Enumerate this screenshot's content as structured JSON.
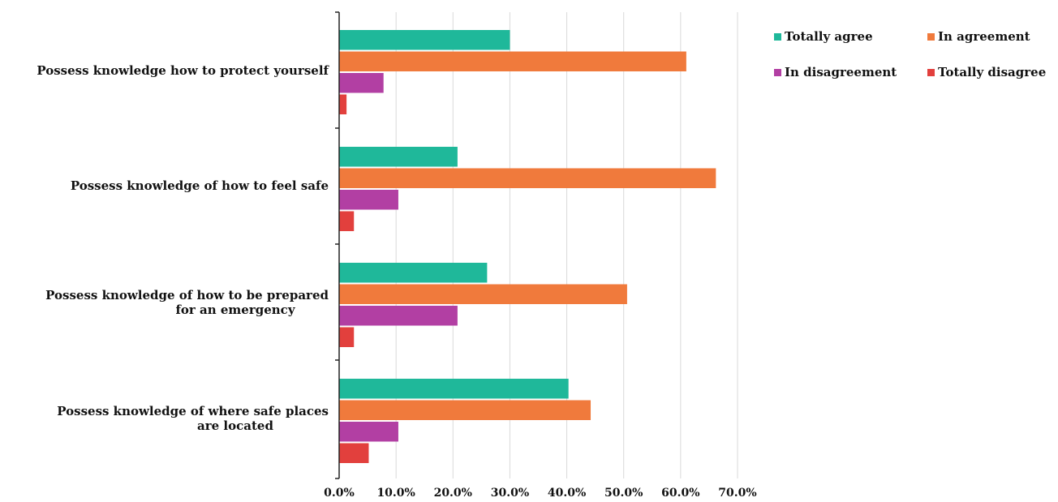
{
  "chart_data": {
    "type": "bar",
    "orientation": "horizontal",
    "categories": [
      [
        "Possess knowledge how to protect yourself"
      ],
      [
        "Possess knowledge of how to feel safe"
      ],
      [
        "Possess knowledge of how to be prepared",
        "for an emergency"
      ],
      [
        "Possess knowledge of where safe places",
        "are located"
      ]
    ],
    "series": [
      {
        "name": "Totally agree",
        "color": "#1fb89a",
        "values": [
          30.0,
          20.8,
          26.0,
          40.3
        ]
      },
      {
        "name": "In agreement",
        "color": "#f07a3c",
        "values": [
          61.0,
          66.2,
          50.6,
          44.2
        ]
      },
      {
        "name": "In disagreement",
        "color": "#b23fa3",
        "values": [
          7.8,
          10.4,
          20.8,
          10.4
        ]
      },
      {
        "name": "Totally disagree",
        "color": "#e2403d",
        "values": [
          1.3,
          2.6,
          2.6,
          5.2
        ]
      }
    ],
    "xlim": [
      0,
      70
    ],
    "xticks": [
      "0.0%",
      "10.0%",
      "20.0%",
      "30.0%",
      "40.0%",
      "50.0%",
      "60.0%",
      "70.0%"
    ],
    "grid": true,
    "legend": "top-right",
    "title": "",
    "xlabel": "",
    "ylabel": ""
  }
}
